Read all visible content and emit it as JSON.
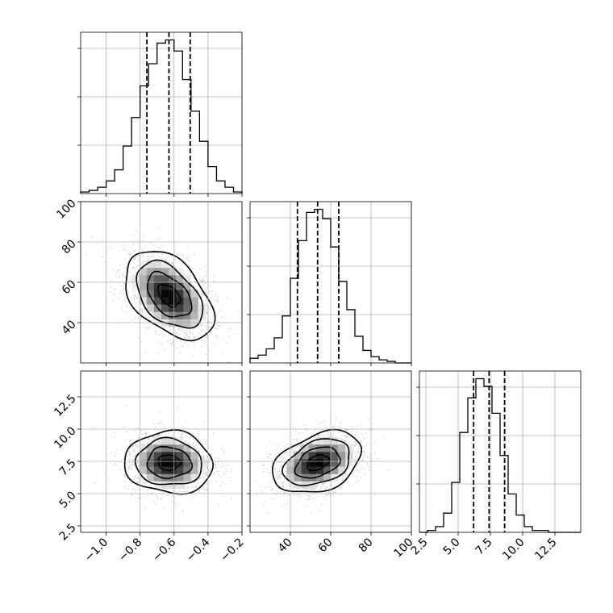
{
  "chart_data": {
    "type": "corner",
    "parameters": [
      "",
      "",
      ""
    ],
    "ranges": [
      [
        -1.15,
        -0.2
      ],
      [
        20,
        100
      ],
      [
        2,
        14.5
      ]
    ],
    "ticks": [
      {
        "values": [
          -1.0,
          -0.8,
          -0.6,
          -0.4,
          -0.2
        ],
        "labels": [
          "−1.0",
          "−0.8",
          "−0.6",
          "−0.4",
          "−0.2"
        ]
      },
      {
        "values": [
          40,
          60,
          80,
          100
        ],
        "labels": [
          "40",
          "60",
          "80",
          "100"
        ]
      },
      {
        "values": [
          2.5,
          5.0,
          7.5,
          10.0,
          12.5
        ],
        "labels": [
          "2.5",
          "5.0",
          "7.5",
          "10.0",
          "12.5"
        ]
      }
    ],
    "grid": true,
    "histograms": [
      {
        "bins": [
          -1.15,
          -1.1,
          -1.05,
          -1.0,
          -0.95,
          -0.9,
          -0.85,
          -0.8,
          -0.75,
          -0.7,
          -0.65,
          -0.6,
          -0.55,
          -0.5,
          -0.45,
          -0.4,
          -0.35,
          -0.3,
          -0.25,
          -0.2
        ],
        "counts": [
          1,
          2,
          4,
          8,
          15,
          30,
          48,
          68,
          82,
          95,
          97,
          90,
          72,
          52,
          33,
          17,
          8,
          4,
          1
        ],
        "quantiles": [
          -0.76,
          -0.63,
          -0.505
        ]
      },
      {
        "bins": [
          20,
          24,
          28,
          32,
          36,
          40,
          44,
          48,
          52,
          56,
          60,
          64,
          68,
          72,
          76,
          80,
          84,
          88,
          92,
          96,
          100
        ],
        "counts": [
          3,
          5,
          9,
          16,
          30,
          54,
          78,
          96,
          98,
          92,
          74,
          52,
          34,
          17,
          8,
          4,
          2,
          1,
          0,
          0
        ],
        "quantiles": [
          43.5,
          53.5,
          64.0
        ]
      },
      {
        "bins": [
          2,
          2.625,
          3.25,
          3.875,
          4.5,
          5.125,
          5.75,
          6.375,
          7.0,
          7.625,
          8.25,
          8.875,
          9.5,
          10.125,
          10.75,
          11.375,
          12.0,
          12.625,
          13.25,
          13.875,
          14.5
        ],
        "counts": [
          0,
          1,
          3,
          10,
          26,
          52,
          70,
          80,
          76,
          62,
          40,
          20,
          9,
          3,
          1,
          1,
          0,
          0,
          0,
          0
        ],
        "quantiles": [
          6.2,
          7.4,
          8.6
        ]
      }
    ],
    "pairs": [
      {
        "x_param": 0,
        "y_param": 1,
        "mean": [
          -0.63,
          53.5
        ],
        "sd": [
          0.13,
          11.0
        ],
        "corr": -0.45,
        "contour_sigmas": [
          0.5,
          1.0,
          1.5,
          2.0
        ]
      },
      {
        "x_param": 0,
        "y_param": 2,
        "mean": [
          -0.63,
          7.4
        ],
        "sd": [
          0.13,
          1.2
        ],
        "corr": -0.05,
        "contour_sigmas": [
          0.5,
          1.0,
          1.5,
          2.0
        ]
      },
      {
        "x_param": 1,
        "y_param": 2,
        "mean": [
          53.5,
          7.4
        ],
        "sd": [
          11.0,
          1.2
        ],
        "corr": 0.35,
        "contour_sigmas": [
          0.5,
          1.0,
          1.5,
          2.0
        ]
      }
    ]
  }
}
